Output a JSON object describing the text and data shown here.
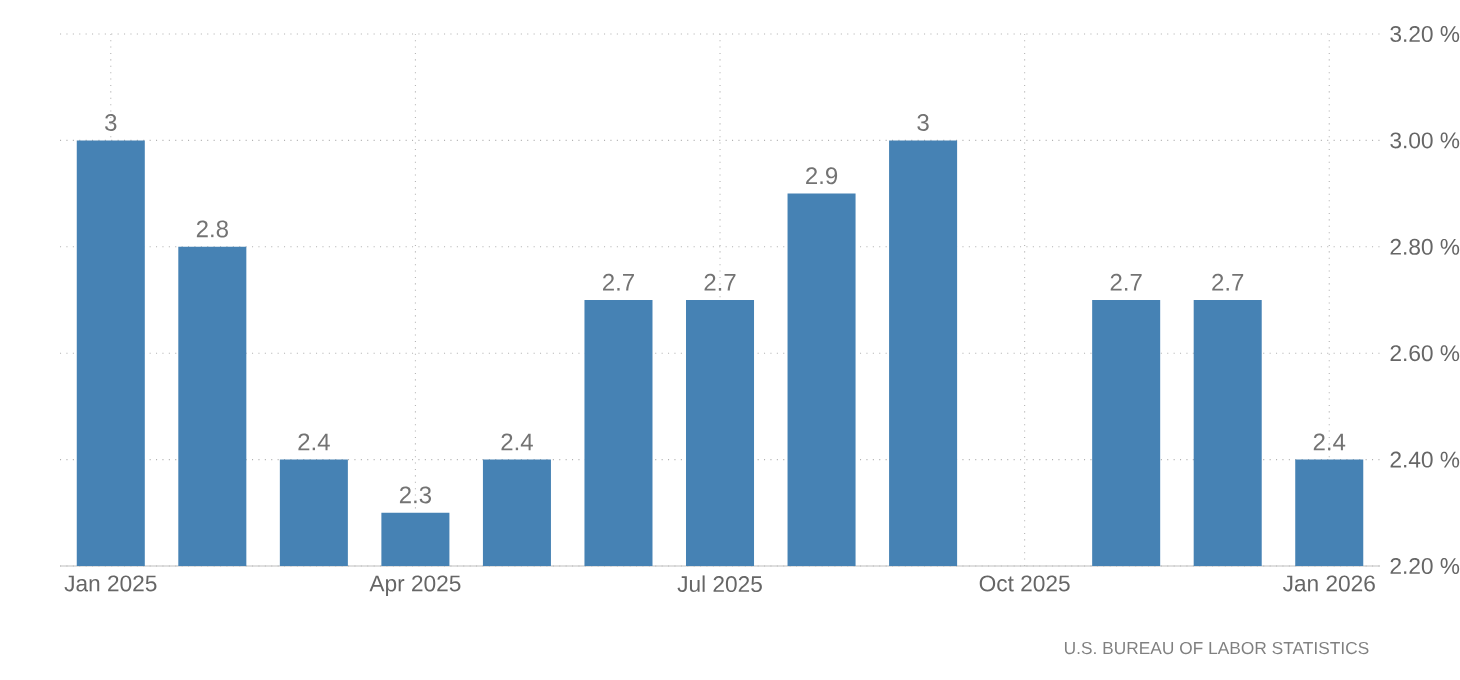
{
  "chart_data": {
    "type": "bar",
    "categories": [
      "Jan 2025",
      null,
      null,
      "Apr 2025",
      null,
      null,
      "Jul 2025",
      null,
      null,
      "Oct 2025",
      null,
      null,
      "Jan 2026"
    ],
    "values": [
      3,
      2.8,
      2.4,
      2.3,
      2.4,
      2.7,
      2.7,
      2.9,
      3,
      null,
      2.7,
      2.7,
      2.4
    ],
    "value_labels": [
      "3",
      "2.8",
      "2.4",
      "2.3",
      "2.4",
      "2.7",
      "2.7",
      "2.9",
      "3",
      null,
      "2.7",
      "2.7",
      "2.4"
    ],
    "color": "#4682b4",
    "ylim": [
      2.2,
      3.2
    ],
    "yticks": [
      {
        "value": 2.2,
        "label": "2.20 %"
      },
      {
        "value": 2.4,
        "label": "2.40 %"
      },
      {
        "value": 2.6,
        "label": "2.60 %"
      },
      {
        "value": 2.8,
        "label": "2.80 %"
      },
      {
        "value": 3.0,
        "label": "3.00 %"
      },
      {
        "value": 3.2,
        "label": "3.20 %"
      }
    ],
    "grid": true,
    "annotations": [
      "U.S. BUREAU OF LABOR STATISTICS"
    ]
  }
}
